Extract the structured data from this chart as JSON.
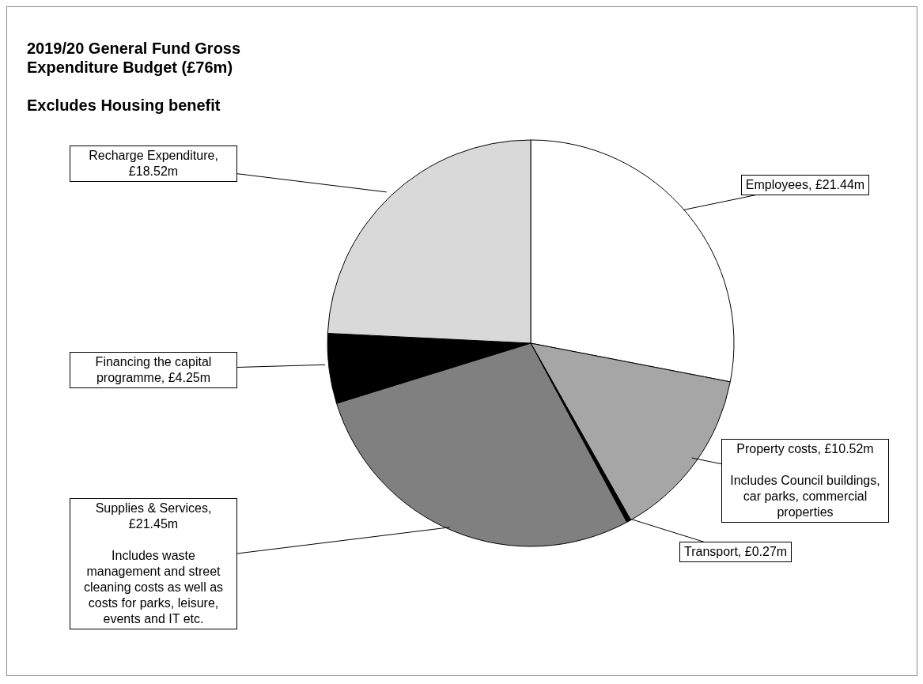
{
  "chart_data": {
    "type": "pie",
    "title": "2019/20 General Fund Gross Expenditure Budget (£76m)",
    "subtitle": "Excludes Housing benefit",
    "categories": [
      "Employees, £21.44m",
      "Property costs, £10.52m",
      "Transport, £0.27m",
      "Supplies & Services, £21.45m",
      "Financing the capital programme, £4.25m",
      "Recharge Expenditure, £18.52m"
    ],
    "values": [
      21.44,
      10.52,
      0.27,
      21.45,
      4.25,
      18.52
    ],
    "colors": [
      "#ffffff",
      "#a6a6a6",
      "#000000",
      "#808080",
      "#000000",
      "#d9d9d9"
    ],
    "annotations": [
      {
        "text": "Includes Council buildings, car parks, commercial properties",
        "x": "Property costs, £10.52m"
      },
      {
        "text": "Includes waste management and street cleaning costs as well as costs for parks, leisure, events and IT etc.",
        "x": "Supplies & Services, £21.45m"
      }
    ],
    "legend": false
  }
}
